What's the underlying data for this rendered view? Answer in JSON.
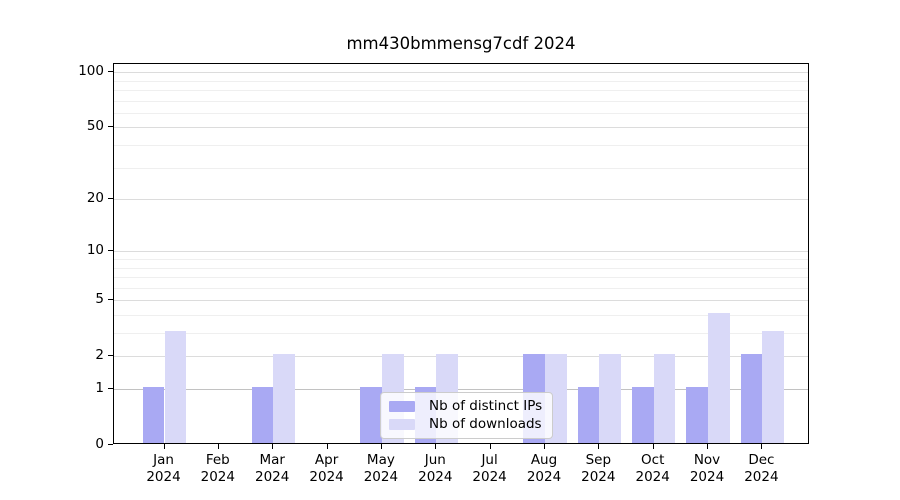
{
  "chart_data": {
    "type": "bar",
    "title": "mm430bmmensg7cdf 2024",
    "categories": [
      "Jan",
      "Feb",
      "Mar",
      "Apr",
      "May",
      "Jun",
      "Jul",
      "Aug",
      "Sep",
      "Oct",
      "Nov",
      "Dec"
    ],
    "category_year": "2024",
    "series": [
      {
        "name": "Nb of distinct IPs",
        "color": "#a9a9f3",
        "values": [
          1,
          0,
          1,
          0,
          1,
          1,
          0,
          2,
          1,
          1,
          1,
          2
        ]
      },
      {
        "name": "Nb of downloads",
        "color": "#d9d9f8",
        "values": [
          3,
          0,
          2,
          0,
          2,
          2,
          0,
          2,
          2,
          2,
          4,
          3
        ]
      }
    ],
    "yscale": "log1p",
    "ylim": [
      0,
      110
    ],
    "yticks": [
      0,
      1,
      2,
      5,
      10,
      20,
      50,
      100
    ],
    "minor_gridlines": [
      3,
      4,
      6,
      7,
      8,
      9,
      30,
      40,
      60,
      70,
      80,
      90
    ],
    "grid": true,
    "legend_position": "lower center",
    "colors": {
      "major_grid": "#dcdcdc",
      "baseline_grid": "#c2c2c2",
      "minor_grid": "#efefef",
      "axis": "#000000",
      "text": "#000000"
    }
  }
}
